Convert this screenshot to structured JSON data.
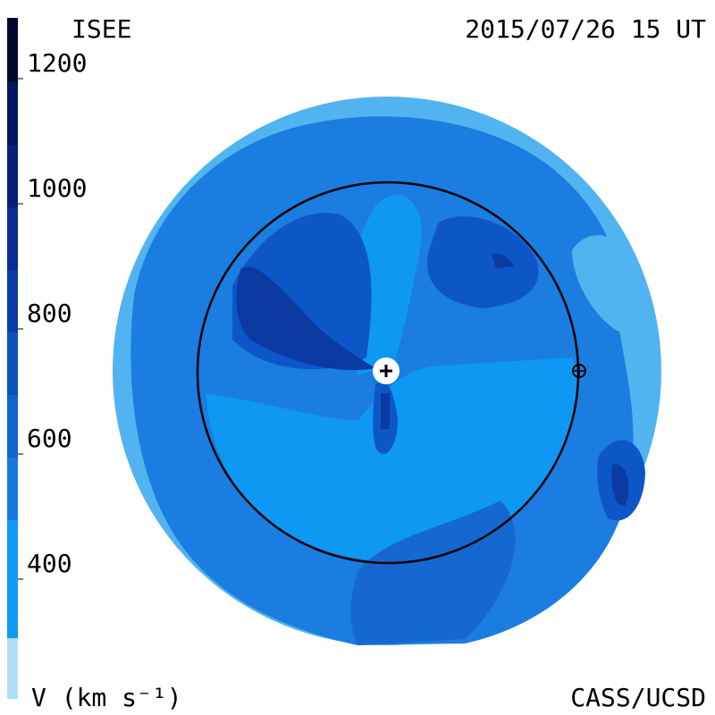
{
  "header": {
    "title": "ISEE",
    "timestamp": "2015/07/26 15 UT"
  },
  "footer": {
    "units": "V (km s⁻¹)",
    "credit": "CASS/UCSD"
  },
  "colorbar": {
    "ticks": [
      1200,
      1000,
      800,
      600,
      400
    ]
  }
}
